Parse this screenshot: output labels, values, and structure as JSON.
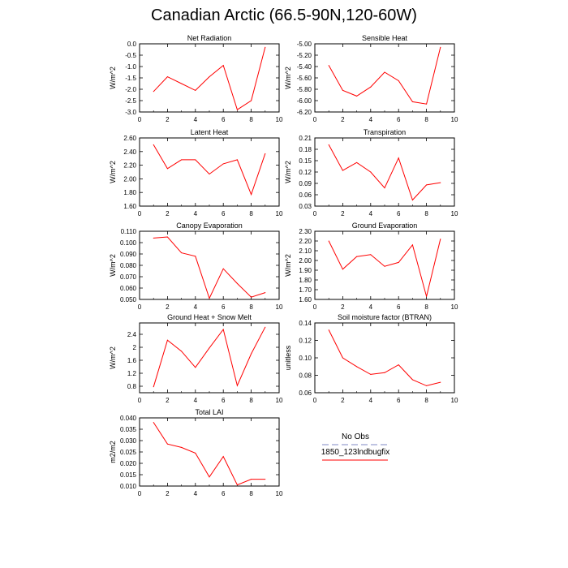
{
  "figure": {
    "title": "Canadian Arctic (66.5-90N,120-60W)"
  },
  "legend": {
    "entries": [
      {
        "label": "No Obs",
        "color": "#aab0d8",
        "style": "dashed"
      },
      {
        "label": "1850_123lndbugfix",
        "color": "#ff0000",
        "style": "solid"
      }
    ]
  },
  "chart_data": [
    {
      "type": "line",
      "title": "Net Radiation",
      "ylabel": "W/m^2",
      "x": [
        1,
        2,
        3,
        4,
        5,
        6,
        7,
        8,
        9
      ],
      "series": [
        {
          "name": "1850_123lndbugfix",
          "color": "#ff0000",
          "values": [
            -2.1,
            -1.45,
            -1.75,
            -2.05,
            -1.45,
            -0.95,
            -2.9,
            -2.5,
            -0.15
          ]
        }
      ],
      "xlim": [
        0,
        10
      ],
      "xticks": [
        0,
        2,
        4,
        6,
        8,
        10
      ],
      "ylim": [
        -3.0,
        0.0
      ],
      "yticks": [
        -3.0,
        -2.5,
        -2.0,
        -1.5,
        -1.0,
        -0.5,
        0.0
      ],
      "yticklabels": [
        "-3.0",
        "-2.5",
        "-2.0",
        "-1.5",
        "-1.0",
        "-0.5",
        "0.0"
      ]
    },
    {
      "type": "line",
      "title": "Sensible Heat",
      "ylabel": "W/m^2",
      "x": [
        1,
        2,
        3,
        4,
        5,
        6,
        7,
        8,
        9
      ],
      "series": [
        {
          "name": "1850_123lndbugfix",
          "color": "#ff0000",
          "values": [
            -5.38,
            -5.82,
            -5.92,
            -5.76,
            -5.5,
            -5.65,
            -6.02,
            -6.06,
            -5.06
          ]
        }
      ],
      "xlim": [
        0,
        10
      ],
      "xticks": [
        0,
        2,
        4,
        6,
        8,
        10
      ],
      "ylim": [
        -6.2,
        -5.0
      ],
      "yticks": [
        -6.2,
        -6.0,
        -5.8,
        -5.6,
        -5.4,
        -5.2,
        -5.0
      ],
      "yticklabels": [
        "-6.20",
        "-6.00",
        "-5.80",
        "-5.60",
        "-5.40",
        "-5.20",
        "-5.00"
      ]
    },
    {
      "type": "line",
      "title": "Latent Heat",
      "ylabel": "W/m^2",
      "x": [
        1,
        2,
        3,
        4,
        5,
        6,
        7,
        8,
        9
      ],
      "series": [
        {
          "name": "1850_123lndbugfix",
          "color": "#ff0000",
          "values": [
            2.5,
            2.15,
            2.28,
            2.28,
            2.07,
            2.22,
            2.28,
            1.77,
            2.37
          ]
        }
      ],
      "xlim": [
        0,
        10
      ],
      "xticks": [
        0,
        2,
        4,
        6,
        8,
        10
      ],
      "ylim": [
        1.6,
        2.6
      ],
      "yticks": [
        1.6,
        1.8,
        2.0,
        2.2,
        2.4,
        2.6
      ],
      "yticklabels": [
        "1.60",
        "1.80",
        "2.00",
        "2.20",
        "2.40",
        "2.60"
      ]
    },
    {
      "type": "line",
      "title": "Transpiration",
      "ylabel": "W/m^2",
      "x": [
        1,
        2,
        3,
        4,
        5,
        6,
        7,
        8,
        9
      ],
      "series": [
        {
          "name": "1850_123lndbugfix",
          "color": "#ff0000",
          "values": [
            0.192,
            0.124,
            0.145,
            0.12,
            0.078,
            0.157,
            0.046,
            0.086,
            0.092
          ]
        }
      ],
      "xlim": [
        0,
        10
      ],
      "xticks": [
        0,
        2,
        4,
        6,
        8,
        10
      ],
      "ylim": [
        0.03,
        0.21
      ],
      "yticks": [
        0.03,
        0.06,
        0.09,
        0.12,
        0.15,
        0.18,
        0.21
      ],
      "yticklabels": [
        "0.03",
        "0.06",
        "0.09",
        "0.12",
        "0.15",
        "0.18",
        "0.21"
      ]
    },
    {
      "type": "line",
      "title": "Canopy Evaporation",
      "ylabel": "W/m^2",
      "x": [
        1,
        2,
        3,
        4,
        5,
        6,
        7,
        8,
        9
      ],
      "series": [
        {
          "name": "1850_123lndbugfix",
          "color": "#ff0000",
          "values": [
            0.104,
            0.105,
            0.091,
            0.088,
            0.051,
            0.077,
            0.064,
            0.052,
            0.056
          ]
        }
      ],
      "xlim": [
        0,
        10
      ],
      "xticks": [
        0,
        2,
        4,
        6,
        8,
        10
      ],
      "ylim": [
        0.05,
        0.11
      ],
      "yticks": [
        0.05,
        0.06,
        0.07,
        0.08,
        0.09,
        0.1,
        0.11
      ],
      "yticklabels": [
        "0.050",
        "0.060",
        "0.070",
        "0.080",
        "0.090",
        "0.100",
        "0.110"
      ]
    },
    {
      "type": "line",
      "title": "Ground Evaporation",
      "ylabel": "W/m^2",
      "x": [
        1,
        2,
        3,
        4,
        5,
        6,
        7,
        8,
        9
      ],
      "series": [
        {
          "name": "1850_123lndbugfix",
          "color": "#ff0000",
          "values": [
            2.2,
            1.91,
            2.04,
            2.06,
            1.94,
            1.98,
            2.16,
            1.63,
            2.22
          ]
        }
      ],
      "xlim": [
        0,
        10
      ],
      "xticks": [
        0,
        2,
        4,
        6,
        8,
        10
      ],
      "ylim": [
        1.6,
        2.3
      ],
      "yticks": [
        1.6,
        1.7,
        1.8,
        1.9,
        2.0,
        2.1,
        2.2,
        2.3
      ],
      "yticklabels": [
        "1.60",
        "1.70",
        "1.80",
        "1.90",
        "2.00",
        "2.10",
        "2.20",
        "2.30"
      ]
    },
    {
      "type": "line",
      "title": "Ground Heat + Snow Melt",
      "ylabel": "W/m^2",
      "x": [
        1,
        2,
        3,
        4,
        5,
        6,
        7,
        8,
        9
      ],
      "series": [
        {
          "name": "1850_123lndbugfix",
          "color": "#ff0000",
          "values": [
            0.78,
            2.22,
            1.88,
            1.38,
            1.98,
            2.55,
            0.82,
            1.8,
            2.62
          ]
        }
      ],
      "xlim": [
        0,
        10
      ],
      "xticks": [
        0,
        2,
        4,
        6,
        8,
        10
      ],
      "ylim": [
        0.6,
        2.75
      ],
      "yticks": [
        0.8,
        1.2,
        1.6,
        2.0,
        2.4
      ],
      "yticklabels": [
        "0.8",
        "1.2",
        "1.6",
        "2",
        "2.4"
      ]
    },
    {
      "type": "line",
      "title": "Soil moisture factor (BTRAN)",
      "ylabel": "unitless",
      "x": [
        1,
        2,
        3,
        4,
        5,
        6,
        7,
        8,
        9
      ],
      "series": [
        {
          "name": "1850_123lndbugfix",
          "color": "#ff0000",
          "values": [
            0.132,
            0.1,
            0.09,
            0.081,
            0.083,
            0.092,
            0.075,
            0.068,
            0.072
          ]
        }
      ],
      "xlim": [
        0,
        10
      ],
      "xticks": [
        0,
        2,
        4,
        6,
        8,
        10
      ],
      "ylim": [
        0.06,
        0.14
      ],
      "yticks": [
        0.06,
        0.08,
        0.1,
        0.12,
        0.14
      ],
      "yticklabels": [
        "0.06",
        "0.08",
        "0.10",
        "0.12",
        "0.14"
      ]
    },
    {
      "type": "line",
      "title": "Total LAI",
      "ylabel": "m2/m2",
      "x": [
        1,
        2,
        3,
        4,
        5,
        6,
        7,
        8,
        9
      ],
      "series": [
        {
          "name": "1850_123lndbugfix",
          "color": "#ff0000",
          "values": [
            0.038,
            0.0285,
            0.027,
            0.0245,
            0.014,
            0.023,
            0.0105,
            0.013,
            0.013
          ]
        }
      ],
      "xlim": [
        0,
        10
      ],
      "xticks": [
        0,
        2,
        4,
        6,
        8,
        10
      ],
      "ylim": [
        0.01,
        0.04
      ],
      "yticks": [
        0.01,
        0.015,
        0.02,
        0.025,
        0.03,
        0.035,
        0.04
      ],
      "yticklabels": [
        "0.010",
        "0.015",
        "0.020",
        "0.025",
        "0.030",
        "0.035",
        "0.040"
      ]
    }
  ]
}
